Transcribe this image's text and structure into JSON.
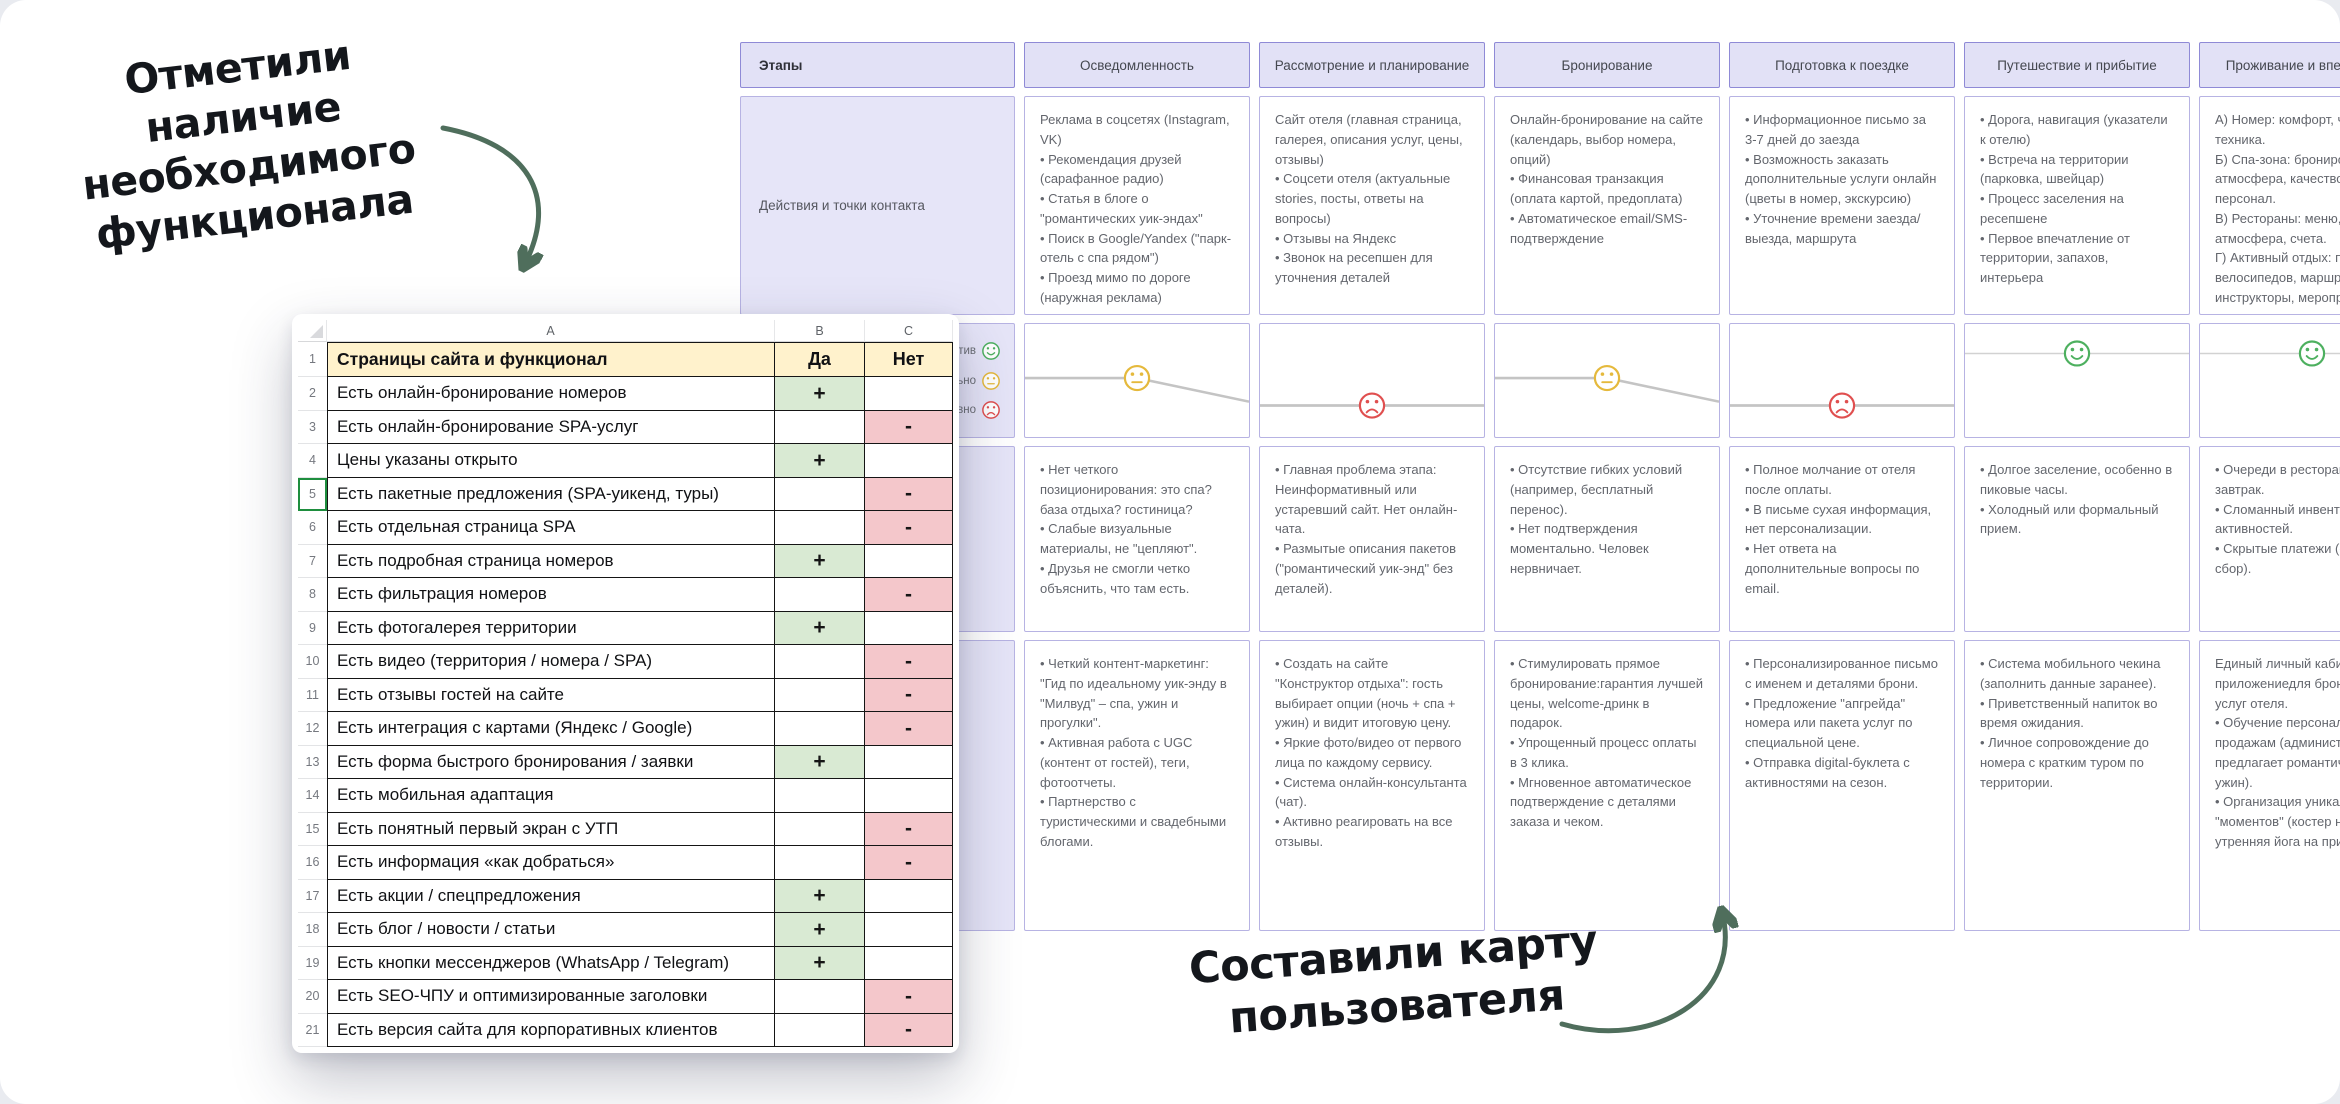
{
  "annotations": {
    "top_lines": [
      "Отметили наличие",
      "необходимого",
      "функционала"
    ],
    "bottom_lines": [
      "Составили карту",
      "пользователя"
    ],
    "arrow_color": "#4f6e5c"
  },
  "spreadsheet": {
    "columns": [
      "A",
      "B",
      "C"
    ],
    "marks": {
      "plus": "+",
      "minus": "-"
    },
    "colors": {
      "title_bg": "#fff2cc",
      "yes_bg": "#d9ead3",
      "no_bg": "#f4c7cb"
    },
    "title_row": {
      "num": "1",
      "label": "Страницы сайта и функционал",
      "yes": "Да",
      "no": "Нет"
    },
    "rows": [
      {
        "num": "2",
        "label": "Есть онлайн-бронирование номеров",
        "mark": "plus"
      },
      {
        "num": "3",
        "label": "Есть онлайн-бронирование SPA-услуг",
        "mark": "minus"
      },
      {
        "num": "4",
        "label": "Цены указаны открыто",
        "mark": "plus"
      },
      {
        "num": "5",
        "label": "Есть пакетные предложения (SPA-уикенд, туры)",
        "mark": "minus"
      },
      {
        "num": "6",
        "label": "Есть отдельная страница SPA",
        "mark": "minus"
      },
      {
        "num": "7",
        "label": "Есть подробная страница номеров",
        "mark": "plus"
      },
      {
        "num": "8",
        "label": "Есть фильтрация номеров",
        "mark": "minus"
      },
      {
        "num": "9",
        "label": "Есть фотогалерея территории",
        "mark": "plus"
      },
      {
        "num": "10",
        "label": "Есть видео (территория / номера / SPA)",
        "mark": "minus"
      },
      {
        "num": "11",
        "label": "Есть отзывы гостей на сайте",
        "mark": "minus"
      },
      {
        "num": "12",
        "label": "Есть интеграция с картами (Яндекс / Google)",
        "mark": "minus"
      },
      {
        "num": "13",
        "label": "Есть форма быстрого бронирования / заявки",
        "mark": "plus"
      },
      {
        "num": "14",
        "label": "Есть мобильная адаптация",
        "mark": "none"
      },
      {
        "num": "15",
        "label": "Есть понятный первый экран с УТП",
        "mark": "minus"
      },
      {
        "num": "16",
        "label": "Есть информация «как добраться»",
        "mark": "minus"
      },
      {
        "num": "17",
        "label": "Есть акции / спецпредложения",
        "mark": "plus"
      },
      {
        "num": "18",
        "label": "Есть блог / новости / статьи",
        "mark": "plus"
      },
      {
        "num": "19",
        "label": "Есть кнопки мессенджеров (WhatsApp / Telegram)",
        "mark": "plus"
      },
      {
        "num": "20",
        "label": "Есть SEO-ЧПУ и оптимизированные заголовки",
        "mark": "minus"
      },
      {
        "num": "21",
        "label": "Есть версия сайта для корпоративных клиентов",
        "mark": "minus"
      }
    ]
  },
  "journey": {
    "stages_label": "Этапы",
    "actions_label": "Действия и точки контакта",
    "emotion_legend": [
      {
        "type": "happy",
        "label": "Позитив"
      },
      {
        "type": "neutral",
        "label": "Нейтрально"
      },
      {
        "type": "sad",
        "label": "Негативно"
      }
    ],
    "emotion_colors": {
      "happy": "#4db05f",
      "neutral": "#e5b93c",
      "sad": "#e04f4f"
    },
    "stages": [
      {
        "title": "Осведомленность",
        "emotion": "neutral",
        "actions": "Реклама в соцсетях (Instagram, VK)\n• Рекомендация друзей (сарафанное радио)\n• Статья в блоге о \"романтических уик-эндах\"\n• Поиск в Google/Yandex (\"парк-отель с спа рядом\")\n• Проезд мимо по дороге (наружная реклама)",
        "pains": "• Нет четкого позиционирования: это спа? база отдыха? гостиница?\n• Слабые визуальные материалы, не \"цепляют\".\n• Друзья не смогли четко объяснить, что там есть.",
        "solutions": "• Четкий контент-маркетинг: \"Гид по идеальному уик-энду в \"Милвуд\" – спа, ужин и прогулки\".\n• Активная работа с UGC (контент от гостей), теги, фотоотчеты.\n• Партнерство с туристическими и свадебными блогами."
      },
      {
        "title": "Рассмотрение и планирование",
        "emotion": "sad",
        "actions": "Сайт отеля (главная страница, галерея, описания услуг, цены, отзывы)\n• Соцсети отеля (актуальные stories, посты, ответы на вопросы)\n• Отзывы на Яндекс\n• Звонок на ресепшен для уточнения деталей",
        "pains": "• Главная проблема этапа: Неинформативный или устаревший сайт. Нет онлайн-чата.\n• Размытые описания пакетов (\"романтический уик-энд\" без деталей).",
        "solutions": "• Создать на сайте \"Конструктор отдыха\": гость выбирает опции (ночь + спа + ужин) и видит итоговую цену.\n• Яркие фото/видео от первого лица по каждому сервису.\n• Система онлайн-консультанта (чат).\n• Активно реагировать на все отзывы."
      },
      {
        "title": "Бронирование",
        "emotion": "neutral",
        "actions": "Онлайн-бронирование на сайте (календарь, выбор номера, опций)\n• Финансовая транзакция (оплата картой, предоплата)\n• Автоматическое email/SMS-подтверждение",
        "pains": "• Отсутствие гибких условий (например, бесплатный перенос).\n• Нет подтверждения моментально. Человек нервничает.",
        "solutions": "• Стимулировать прямое бронирование:гарантия лучшей цены, welcome-дринк в подарок.\n• Упрощенный процесс оплаты в 3 клика.\n• Мгновенное автоматическое подтверждение с деталями заказа и чеком."
      },
      {
        "title": "Подготовка к поездке",
        "emotion": "sad",
        "actions": "• Информационное письмо за 3-7 дней до заезда\n• Возможность заказать дополнительные услуги онлайн (цветы в номер, экскурсию)\n• Уточнение времени заезда/выезда, маршрута",
        "pains": "• Полное молчание от отеля после оплаты.\n• В письме сухая информация, нет персонализации.\n• Нет ответа на дополнительные вопросы по email.",
        "solutions": "• Персонализированное письмо с именем и деталями брони.\n• Предложение \"апгрейда\" номера или пакета услуг по специальной цене.\n• Отправка digital-буклета с активностями на сезон."
      },
      {
        "title": "Путешествие и прибытие",
        "emotion": "happy",
        "actions": "• Дорога, навигация (указатели к отелю)\n• Встреча на территории (парковка, швейцар)\n• Процесс заселения на ресепшене\n• Первое впечатление от территории, запахов, интерьера",
        "pains": "• Долгое заселение, особенно в пиковые часы.\n• Холодный или формальный прием.",
        "solutions": "• Система мобильного чекина (заполнить данные заранее).\n• Приветственный напиток во время ожидания.\n• Личное сопровождение до номера с кратким туром по территории."
      },
      {
        "title": "Проживание и впечатления",
        "emotion": "happy",
        "actions": "А) Номер: комфорт, чистота, техника.\nБ) Спа-зона: бронирование, атмосфера, качество услуг, персонал.\nВ) Рестораны: меню, кухня, атмосфера, счета.\nГ) Активный отдых: прокат велосипедов, маршруты, инструкторы, мероприятия",
        "pains": "• Очереди в ресторане на завтрак.\n• Сломанный инвентарь для активностей.\n• Скрытые платежи (сервисный сбор).",
        "solutions": "Единый личный кабинет-приложениедля бронирования услуг отеля.\n• Обучение персонала продажам (администратор предлагает романтический ужин).\n• Организация уникальных \"моментов\" (костер на берегу, утренняя йога на природе)."
      }
    ]
  }
}
